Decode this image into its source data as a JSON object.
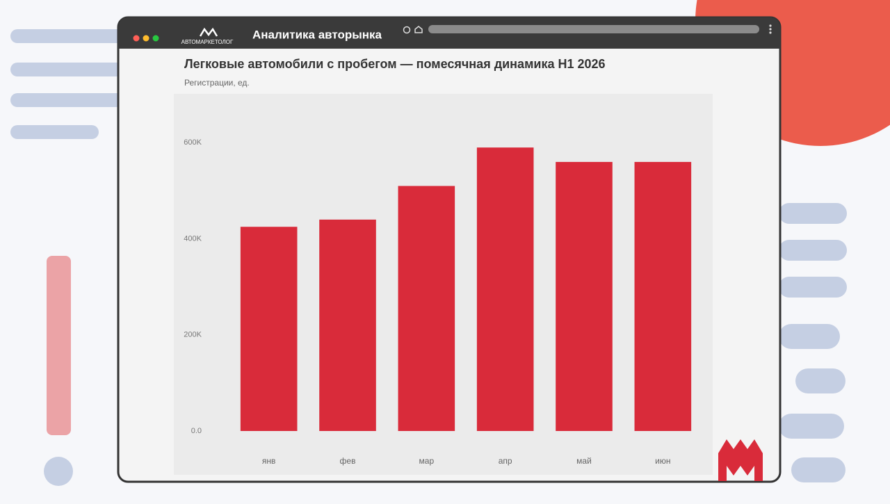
{
  "window": {
    "title": "Аналитика авторынка",
    "logo": "АВТОМАРКЕТОЛОГ"
  },
  "chart_data": {
    "type": "bar",
    "title": "Легковые автомобили с пробегом — помесячная динамика H1 2026",
    "subtitle": "Регистрации, ед.",
    "categories": [
      "янв",
      "фев",
      "мар",
      "апр",
      "май",
      "июн"
    ],
    "values": [
      425000,
      440000,
      510000,
      590000,
      560000,
      560000
    ],
    "color": "#d92b3a",
    "ylim": [
      0,
      680000
    ],
    "yticks": [
      {
        "value": 0,
        "label": "0.0"
      },
      {
        "value": 200000,
        "label": "200K"
      },
      {
        "value": 400000,
        "label": "400K"
      },
      {
        "value": 600000,
        "label": "600K"
      }
    ],
    "grid": false
  }
}
